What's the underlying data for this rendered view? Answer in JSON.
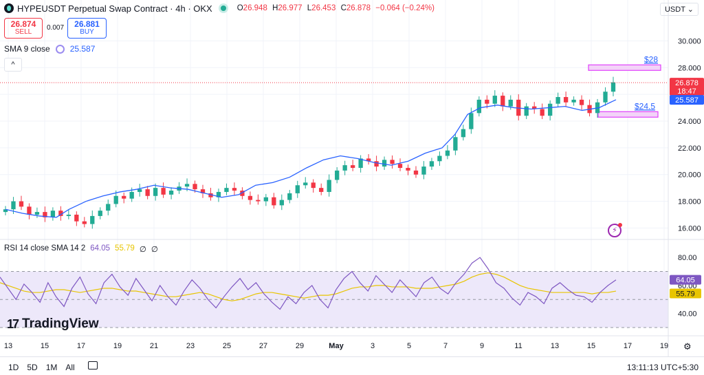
{
  "header": {
    "title": "HYPEUSDT Perpetual Swap Contract · 4h · OKX",
    "ohlc": [
      {
        "k": "O",
        "v": "26.948"
      },
      {
        "k": "H",
        "v": "26.977"
      },
      {
        "k": "L",
        "v": "26.453"
      },
      {
        "k": "C",
        "v": "26.878"
      }
    ],
    "change": "−0.064 (−0.24%)",
    "currency": "USDT"
  },
  "trade": {
    "sell_price": "26.874",
    "sell_label": "SELL",
    "spread": "0.007",
    "buy_price": "26.881",
    "buy_label": "BUY"
  },
  "sma_legend": {
    "label": "SMA 9 close",
    "value": "25.587"
  },
  "rsi_legend": {
    "label": "RSI 14 close SMA 14 2",
    "rsi": "64.05",
    "sma": "55.79",
    "n1": "∅",
    "n2": "∅"
  },
  "branding": {
    "logo_text": "TradingView",
    "logo_mark": "17"
  },
  "bottom": {
    "ranges": [
      "1D",
      "5D",
      "1M",
      "All"
    ],
    "clock": "13:11:13 UTC+5:30"
  },
  "colors": {
    "up": "#22ab94",
    "down": "#f23645",
    "sma": "#2962ff",
    "rsi": "#7e57c2",
    "rsi_sma": "#e8c500",
    "zone": "#e040fb"
  },
  "chart_data": [
    {
      "type": "candlestick",
      "ylim": [
        15.3,
        31.0
      ],
      "y_ticks": [
        "30.000",
        "28.000",
        "26.000",
        "24.000",
        "22.000",
        "20.000",
        "18.000",
        "16.000"
      ],
      "y_tick_values": [
        30,
        28,
        26,
        24,
        22,
        20,
        18,
        16
      ],
      "x_ticks": [
        "13",
        "15",
        "17",
        "19",
        "21",
        "23",
        "25",
        "27",
        "29",
        "May",
        "3",
        "5",
        "7",
        "9",
        "11",
        "13",
        "15",
        "17",
        "19"
      ],
      "last_price": "26.878",
      "countdown": "18:47",
      "sma_last": "25.587",
      "sma_line": [
        [
          0,
          17.4
        ],
        [
          8,
          17.1
        ],
        [
          16,
          16.9
        ],
        [
          24,
          16.8
        ],
        [
          30,
          17.4
        ],
        [
          38,
          18.0
        ],
        [
          46,
          18.4
        ],
        [
          54,
          18.7
        ],
        [
          62,
          18.9
        ],
        [
          70,
          19.2
        ],
        [
          78,
          19.0
        ],
        [
          86,
          18.9
        ],
        [
          94,
          18.6
        ],
        [
          102,
          18.3
        ],
        [
          110,
          18.5
        ],
        [
          118,
          19.2
        ],
        [
          126,
          19.4
        ],
        [
          134,
          19.8
        ],
        [
          142,
          20.5
        ],
        [
          150,
          21.1
        ],
        [
          158,
          21.4
        ],
        [
          166,
          21.2
        ],
        [
          174,
          20.9
        ],
        [
          182,
          20.7
        ],
        [
          190,
          21.0
        ],
        [
          198,
          21.6
        ],
        [
          206,
          22.0
        ],
        [
          212,
          23.0
        ],
        [
          218,
          24.5
        ],
        [
          224,
          25.0
        ],
        [
          232,
          25.2
        ],
        [
          240,
          25.0
        ],
        [
          248,
          24.9
        ],
        [
          256,
          25.0
        ],
        [
          264,
          25.1
        ],
        [
          272,
          24.8
        ],
        [
          280,
          25.0
        ],
        [
          288,
          25.6
        ]
      ],
      "candle_path": [
        17.4,
        18.0,
        17.6,
        17.0,
        17.2,
        16.8,
        17.3,
        16.9,
        17.0,
        16.5,
        16.3,
        16.9,
        17.3,
        17.8,
        18.4,
        18.2,
        18.7,
        18.9,
        18.4,
        19.0,
        18.5,
        18.8,
        19.1,
        19.3,
        18.9,
        18.6,
        18.3,
        18.7,
        19.0,
        18.8,
        18.4,
        18.1,
        18.0,
        18.3,
        17.7,
        18.1,
        18.6,
        19.2,
        19.4,
        19.0,
        18.7,
        19.6,
        20.3,
        20.7,
        20.5,
        21.2,
        21.0,
        20.6,
        21.1,
        20.8,
        20.5,
        20.3,
        20.0,
        20.6,
        21.0,
        21.4,
        21.8,
        22.8,
        23.4,
        24.6,
        25.6,
        25.3,
        25.9,
        25.1,
        25.6,
        24.4,
        25.1,
        24.9,
        24.4,
        25.3,
        25.8,
        25.4,
        25.6,
        25.2,
        24.6,
        25.4,
        26.2,
        26.9
      ],
      "zones": [
        {
          "label": "$28",
          "value": 28.0
        },
        {
          "label": "$24.5",
          "value": 24.5
        }
      ]
    },
    {
      "type": "line",
      "name": "RSI",
      "ylim": [
        29.0,
        85.0
      ],
      "y_ticks": [
        "80.00",
        "60.00",
        "40.00"
      ],
      "y_tick_values": [
        80,
        60,
        40
      ],
      "band": [
        30,
        70
      ],
      "mid": 50,
      "rsi_last": "64.05",
      "sma_last": "55.79",
      "rsi_path": [
        66,
        58,
        50,
        61,
        55,
        48,
        62,
        52,
        45,
        58,
        66,
        54,
        47,
        62,
        68,
        59,
        53,
        65,
        57,
        49,
        60,
        52,
        46,
        56,
        64,
        58,
        50,
        44,
        52,
        59,
        65,
        57,
        62,
        54,
        48,
        43,
        52,
        47,
        55,
        60,
        50,
        44,
        57,
        65,
        70,
        62,
        56,
        67,
        61,
        55,
        64,
        58,
        52,
        62,
        66,
        58,
        54,
        62,
        68,
        76,
        80,
        72,
        62,
        58,
        51,
        46,
        55,
        52,
        47,
        58,
        62,
        57,
        53,
        52,
        48,
        55,
        60,
        64
      ],
      "sma_path": [
        62,
        60,
        58,
        56,
        55,
        55,
        56,
        57,
        57,
        56,
        55,
        56,
        57,
        58,
        58,
        57,
        56,
        56,
        55,
        54,
        53,
        52,
        52,
        53,
        54,
        55,
        54,
        52,
        50,
        49,
        50,
        52,
        54,
        55,
        55,
        54,
        53,
        52,
        51,
        52,
        53,
        53,
        54,
        56,
        58,
        59,
        59,
        60,
        60,
        59,
        59,
        59,
        58,
        58,
        58,
        59,
        60,
        61,
        63,
        66,
        68,
        69,
        68,
        66,
        63,
        60,
        58,
        57,
        56,
        55,
        55,
        55,
        55,
        55,
        54,
        55,
        55,
        56
      ]
    }
  ]
}
